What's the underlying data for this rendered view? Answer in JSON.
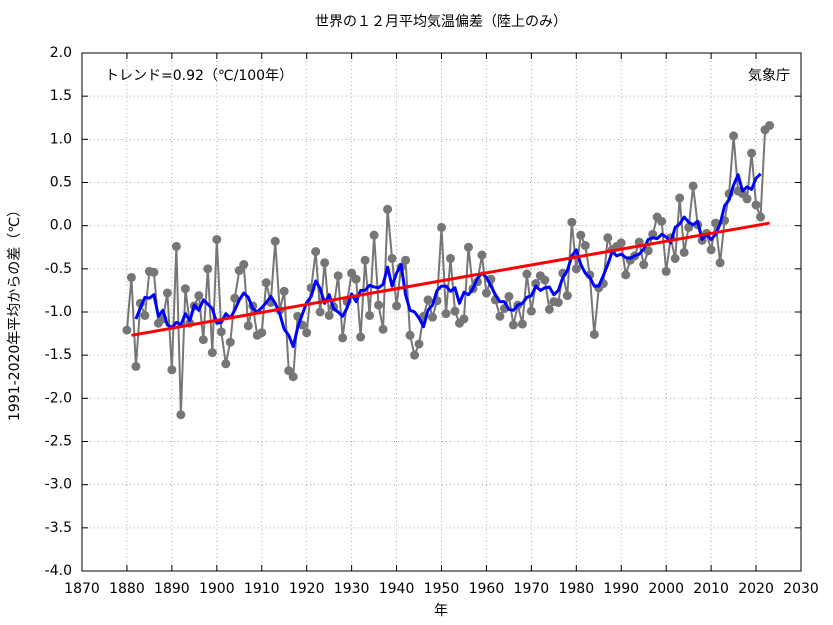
{
  "chart_data": {
    "type": "line",
    "title": "世界の１２月平均気温偏差（陸上のみ）",
    "annotations": [
      "トレンド=0.92（℃/100年）",
      "気象庁"
    ],
    "ylabel": "1991-2020年平均からの差（℃）",
    "xlabel": "年",
    "grid": true,
    "xlim": [
      1870,
      2030
    ],
    "xticks": [
      1870,
      1880,
      1890,
      1900,
      1910,
      1920,
      1930,
      1940,
      1950,
      1960,
      1970,
      1980,
      1990,
      2000,
      2010,
      2020,
      2030
    ],
    "ylim": [
      -4,
      2
    ],
    "yticks": [
      {
        "value": -4,
        "label": "-4.0"
      },
      -3.5,
      {
        "value": -3,
        "label": "-3.0"
      },
      -2.5,
      {
        "value": -2,
        "label": "-2.0"
      },
      -1.5,
      {
        "value": -1,
        "label": "-1.0"
      },
      -0.5,
      {
        "value": 0,
        "label": "0.0"
      },
      0.5,
      {
        "value": 1,
        "label": "1.0"
      },
      1.5,
      {
        "value": 2,
        "label": "2.0"
      }
    ],
    "x": [
      1880,
      1881,
      1882,
      1883,
      1884,
      1885,
      1886,
      1887,
      1888,
      1889,
      1890,
      1891,
      1892,
      1893,
      1894,
      1895,
      1896,
      1897,
      1898,
      1899,
      1900,
      1901,
      1902,
      1903,
      1904,
      1905,
      1906,
      1907,
      1908,
      1909,
      1910,
      1911,
      1912,
      1913,
      1914,
      1915,
      1916,
      1917,
      1918,
      1919,
      1920,
      1921,
      1922,
      1923,
      1924,
      1925,
      1926,
      1927,
      1928,
      1929,
      1930,
      1931,
      1932,
      1933,
      1934,
      1935,
      1936,
      1937,
      1938,
      1939,
      1940,
      1941,
      1942,
      1943,
      1944,
      1945,
      1946,
      1947,
      1948,
      1949,
      1950,
      1951,
      1952,
      1953,
      1954,
      1955,
      1956,
      1957,
      1958,
      1959,
      1960,
      1961,
      1962,
      1963,
      1964,
      1965,
      1966,
      1967,
      1968,
      1969,
      1970,
      1971,
      1972,
      1973,
      1974,
      1975,
      1976,
      1977,
      1978,
      1979,
      1980,
      1981,
      1982,
      1983,
      1984,
      1985,
      1986,
      1987,
      1988,
      1989,
      1990,
      1991,
      1992,
      1993,
      1994,
      1995,
      1996,
      1997,
      1998,
      1999,
      2000,
      2001,
      2002,
      2003,
      2004,
      2005,
      2006,
      2007,
      2008,
      2009,
      2010,
      2011,
      2012,
      2013,
      2014,
      2015,
      2016,
      2017,
      2018,
      2019,
      2020,
      2021,
      2022,
      2023
    ],
    "series": [
      {
        "color": "#767676",
        "markers": true,
        "values": [
          -1.21,
          -0.6,
          -1.63,
          -0.9,
          -1.04,
          -0.53,
          -0.54,
          -1.13,
          -1.08,
          -0.78,
          -1.67,
          -0.24,
          -2.19,
          -0.73,
          -1.13,
          -0.93,
          -0.81,
          -1.32,
          -0.5,
          -1.47,
          -0.16,
          -1.23,
          -1.6,
          -1.35,
          -0.84,
          -0.52,
          -0.45,
          -1.16,
          -0.93,
          -1.27,
          -1.24,
          -0.66,
          -0.89,
          -0.18,
          -0.98,
          -0.76,
          -1.68,
          -1.75,
          -1.05,
          -1.15,
          -1.24,
          -0.72,
          -0.3,
          -1.0,
          -0.43,
          -1.04,
          -0.94,
          -0.58,
          -1.3,
          -0.88,
          -0.55,
          -0.62,
          -1.29,
          -0.4,
          -1.04,
          -0.11,
          -0.92,
          -1.2,
          0.19,
          -0.38,
          -0.93,
          -0.48,
          -0.4,
          -1.27,
          -1.5,
          -1.37,
          -1.05,
          -0.86,
          -1.06,
          -0.87,
          -0.02,
          -1.02,
          -0.38,
          -0.99,
          -1.13,
          -1.08,
          -0.25,
          -0.73,
          -0.65,
          -0.34,
          -0.78,
          -0.62,
          -0.86,
          -1.05,
          -0.96,
          -0.82,
          -1.15,
          -0.92,
          -1.14,
          -0.56,
          -0.99,
          -0.67,
          -0.58,
          -0.63,
          -0.97,
          -0.88,
          -0.89,
          -0.55,
          -0.81,
          0.04,
          -0.5,
          -0.11,
          -0.23,
          -0.57,
          -1.26,
          -0.72,
          -0.67,
          -0.14,
          -0.28,
          -0.24,
          -0.2,
          -0.57,
          -0.4,
          -0.35,
          -0.19,
          -0.45,
          -0.29,
          -0.1,
          0.1,
          0.05,
          -0.53,
          -0.14,
          -0.38,
          0.32,
          -0.31,
          -0.02,
          0.46,
          0.01,
          -0.17,
          -0.09,
          -0.28,
          0.03,
          -0.43,
          0.06,
          0.37,
          1.04,
          0.4,
          0.37,
          0.31,
          0.84,
          0.24,
          0.1,
          1.11,
          1.16
        ]
      },
      {
        "color": "#0000ff",
        "markers": false,
        "values": [
          null,
          null,
          -1.08,
          -0.95,
          -0.83,
          -0.84,
          -0.8,
          -1.05,
          -0.98,
          -1.15,
          -1.18,
          -1.12,
          -1.15,
          -1.02,
          -1.1,
          -0.92,
          -0.98,
          -0.86,
          -0.91,
          -0.96,
          -1.13,
          -1.12,
          -1.02,
          -1.07,
          -0.98,
          -0.86,
          -0.78,
          -0.83,
          -0.96,
          -1.0,
          -0.95,
          -0.89,
          -0.82,
          -0.9,
          -1.02,
          -1.2,
          -1.27,
          -1.4,
          -1.18,
          -1.03,
          -0.89,
          -0.82,
          -0.64,
          -0.73,
          -0.9,
          -0.8,
          -0.96,
          -1.0,
          -1.05,
          -0.95,
          -0.79,
          -0.88,
          -0.75,
          -0.75,
          -0.69,
          -0.71,
          -0.72,
          -0.68,
          -0.48,
          -0.7,
          -0.55,
          -0.45,
          -0.8,
          -0.98,
          -1.0,
          -1.07,
          -1.17,
          -0.98,
          -0.92,
          -0.75,
          -0.7,
          -0.7,
          -0.76,
          -0.72,
          -0.9,
          -0.77,
          -0.8,
          -0.73,
          -0.61,
          -0.55,
          -0.6,
          -0.7,
          -0.8,
          -0.88,
          -0.88,
          -0.97,
          -0.98,
          -0.92,
          -0.9,
          -0.83,
          -0.81,
          -0.7,
          -0.75,
          -0.72,
          -0.71,
          -0.8,
          -0.75,
          -0.6,
          -0.52,
          -0.35,
          -0.28,
          -0.45,
          -0.55,
          -0.6,
          -0.7,
          -0.7,
          -0.58,
          -0.45,
          -0.3,
          -0.35,
          -0.33,
          -0.37,
          -0.38,
          -0.35,
          -0.33,
          -0.27,
          -0.16,
          -0.14,
          -0.15,
          -0.1,
          -0.13,
          -0.2,
          -0.02,
          0.02,
          0.1,
          0.04,
          0.01,
          0.05,
          -0.16,
          -0.1,
          -0.16,
          -0.1,
          0.02,
          0.23,
          0.3,
          0.47,
          0.59,
          0.4,
          0.45,
          0.42,
          0.55,
          0.6,
          null,
          null
        ]
      },
      {
        "color": "#ff0000",
        "markers": false,
        "x": [
          1881,
          2023
        ],
        "values": [
          -1.27,
          0.03
        ]
      }
    ]
  }
}
